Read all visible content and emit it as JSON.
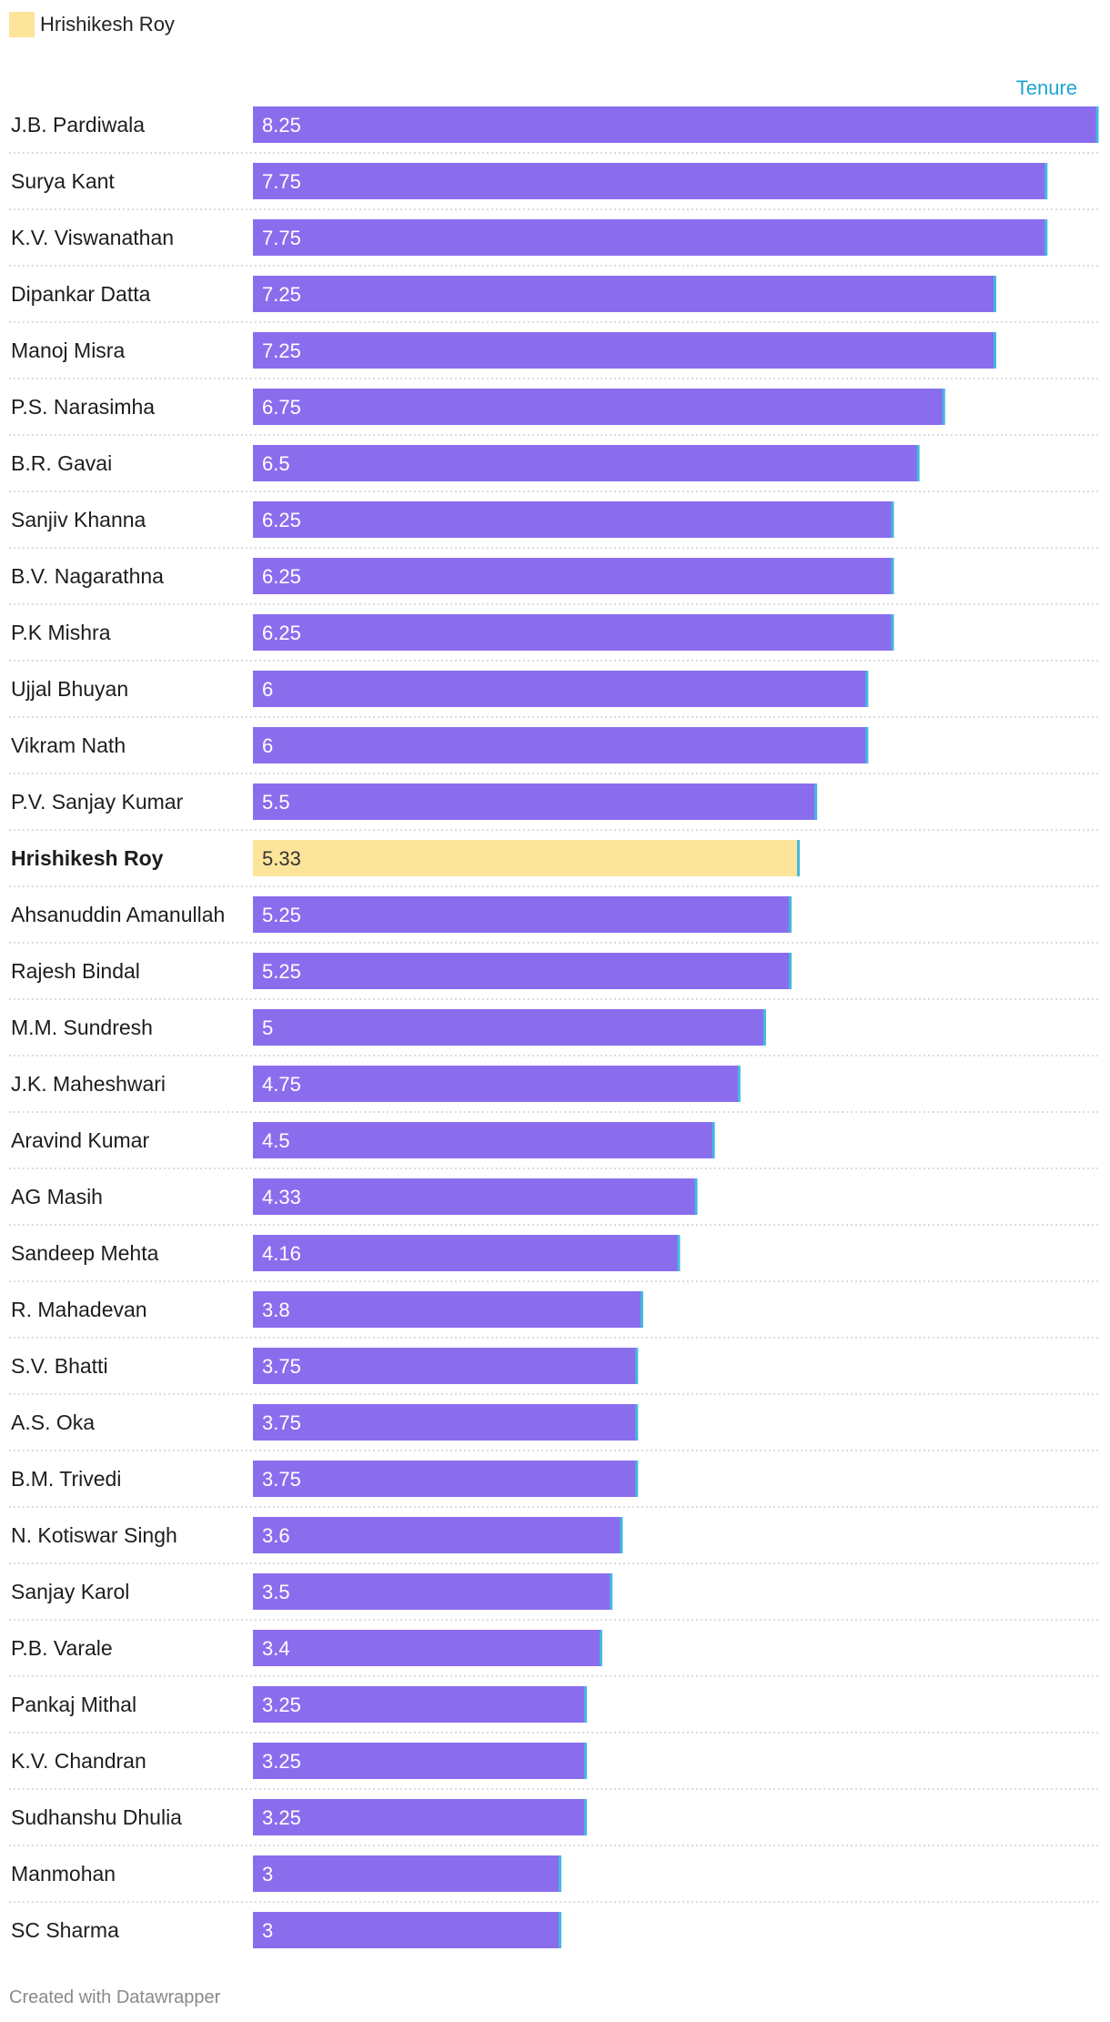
{
  "legend": {
    "label": "Hrishikesh Roy",
    "color": "#fde49b"
  },
  "column_header": "Tenure",
  "footer": "Created with Datawrapper",
  "colors": {
    "bar": "#8a6ded",
    "highlight": "#fde49b",
    "bar_end_line": "#43b8e0",
    "header": "#1fa4cf",
    "bar_text": "#ffffff",
    "highlight_text": "#333333",
    "divider": "#c8c8c8"
  },
  "chart_data": {
    "type": "bar",
    "orientation": "horizontal",
    "value_label": "Tenure",
    "highlight": "Hrishikesh Roy",
    "xlim": [
      0,
      8.25
    ],
    "categories": [
      "J.B. Pardiwala",
      "Surya Kant",
      "K.V. Viswanathan",
      "Dipankar Datta",
      "Manoj Misra",
      "P.S. Narasimha",
      "B.R. Gavai",
      "Sanjiv Khanna",
      "B.V. Nagarathna",
      "P.K Mishra",
      "Ujjal Bhuyan",
      "Vikram Nath",
      "P.V. Sanjay Kumar",
      "Hrishikesh Roy",
      "Ahsanuddin Amanullah",
      "Rajesh Bindal",
      "M.M. Sundresh",
      "J.K. Maheshwari",
      "Aravind Kumar",
      "AG Masih",
      "Sandeep Mehta",
      "R. Mahadevan",
      "S.V. Bhatti",
      "A.S. Oka",
      "B.M. Trivedi",
      "N. Kotiswar Singh",
      "Sanjay Karol",
      "P.B. Varale",
      "Pankaj Mithal",
      "K.V. Chandran",
      "Sudhanshu Dhulia",
      "Manmohan",
      "SC Sharma"
    ],
    "values": [
      8.25,
      7.75,
      7.75,
      7.25,
      7.25,
      6.75,
      6.5,
      6.25,
      6.25,
      6.25,
      6,
      6,
      5.5,
      5.33,
      5.25,
      5.25,
      5,
      4.75,
      4.5,
      4.33,
      4.16,
      3.8,
      3.75,
      3.75,
      3.75,
      3.6,
      3.5,
      3.4,
      3.25,
      3.25,
      3.25,
      3,
      3
    ],
    "value_labels": [
      "8.25",
      "7.75",
      "7.75",
      "7.25",
      "7.25",
      "6.75",
      "6.5",
      "6.25",
      "6.25",
      "6.25",
      "6",
      "6",
      "5.5",
      "5.33",
      "5.25",
      "5.25",
      "5",
      "4.75",
      "4.5",
      "4.33",
      "4.16",
      "3.8",
      "3.75",
      "3.75",
      "3.75",
      "3.6",
      "3.5",
      "3.4",
      "3.25",
      "3.25",
      "3.25",
      "3",
      "3"
    ]
  }
}
